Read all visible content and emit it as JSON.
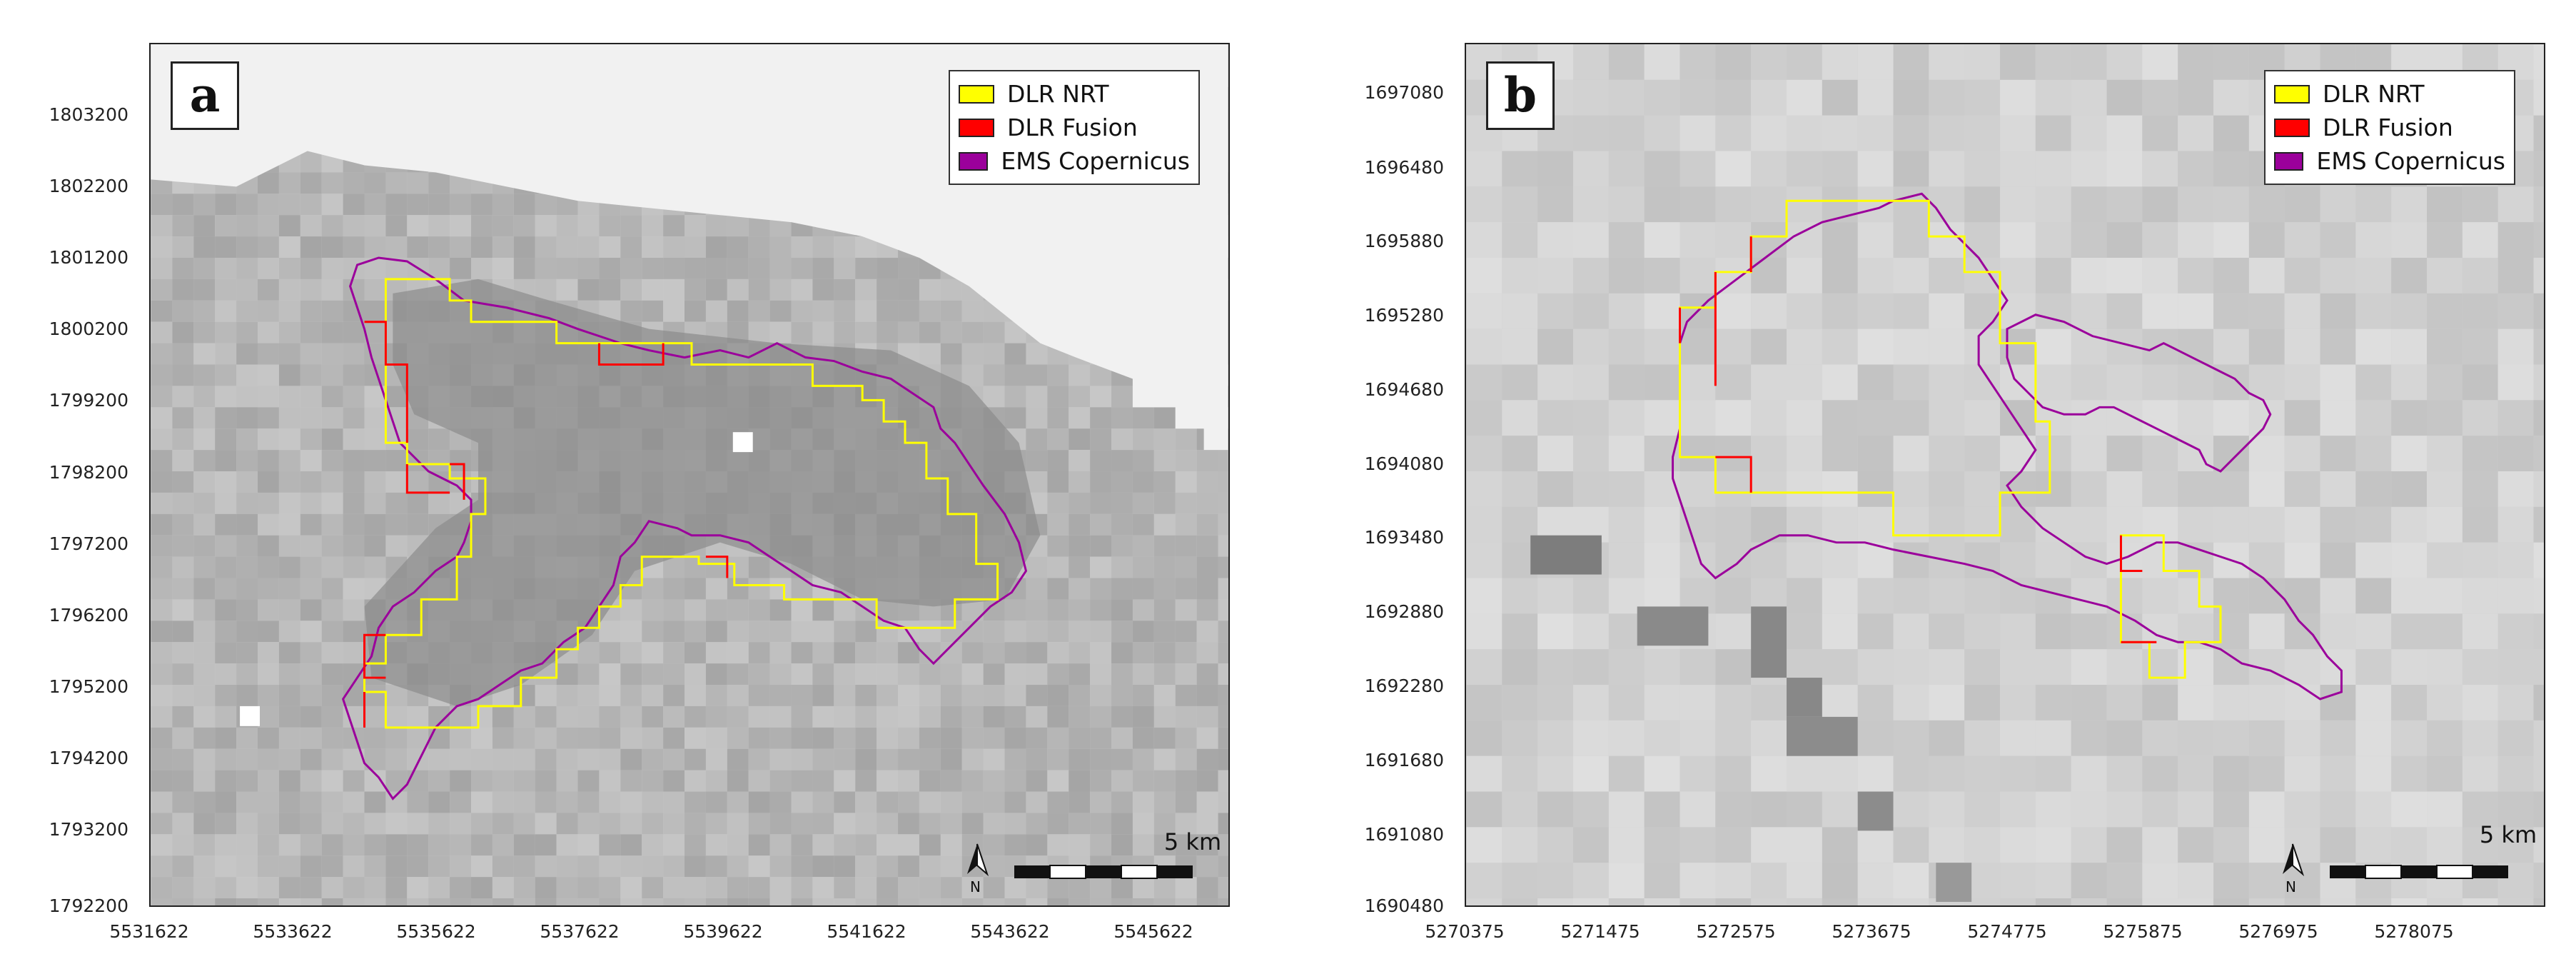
{
  "panels": [
    {
      "letter": "a",
      "legend": [
        {
          "label": "DLR NRT",
          "color": "#ffff00"
        },
        {
          "label": "DLR Fusion",
          "color": "#ff0000"
        },
        {
          "label": "EMS Copernicus",
          "color": "#9b009b"
        }
      ],
      "y_ticks": [
        "1803200",
        "1802200",
        "1801200",
        "1800200",
        "1799200",
        "1798200",
        "1797200",
        "1796200",
        "1795200",
        "1794200",
        "1793200",
        "1792200"
      ],
      "x_ticks": [
        "5531622",
        "5533622",
        "5535622",
        "5537622",
        "5539622",
        "5541622",
        "5543622",
        "5545622"
      ],
      "scale_label": "5 km",
      "north_label": "N"
    },
    {
      "letter": "b",
      "legend": [
        {
          "label": "DLR NRT",
          "color": "#ffff00"
        },
        {
          "label": "DLR Fusion",
          "color": "#ff0000"
        },
        {
          "label": "EMS Copernicus",
          "color": "#9b009b"
        }
      ],
      "y_ticks": [
        "1697080",
        "1696480",
        "1695880",
        "1695280",
        "1694680",
        "1694080",
        "1693480",
        "1692880",
        "1692280",
        "1691680",
        "1691080",
        "1690480"
      ],
      "x_ticks": [
        "5270375",
        "5271475",
        "5272575",
        "5273675",
        "5274775",
        "5275875",
        "5276975",
        "5278075"
      ],
      "scale_label": "5 km",
      "north_label": "N"
    }
  ],
  "colors": {
    "nrt": "#ffff00",
    "fusion": "#ff0000",
    "ems": "#9b009b"
  }
}
